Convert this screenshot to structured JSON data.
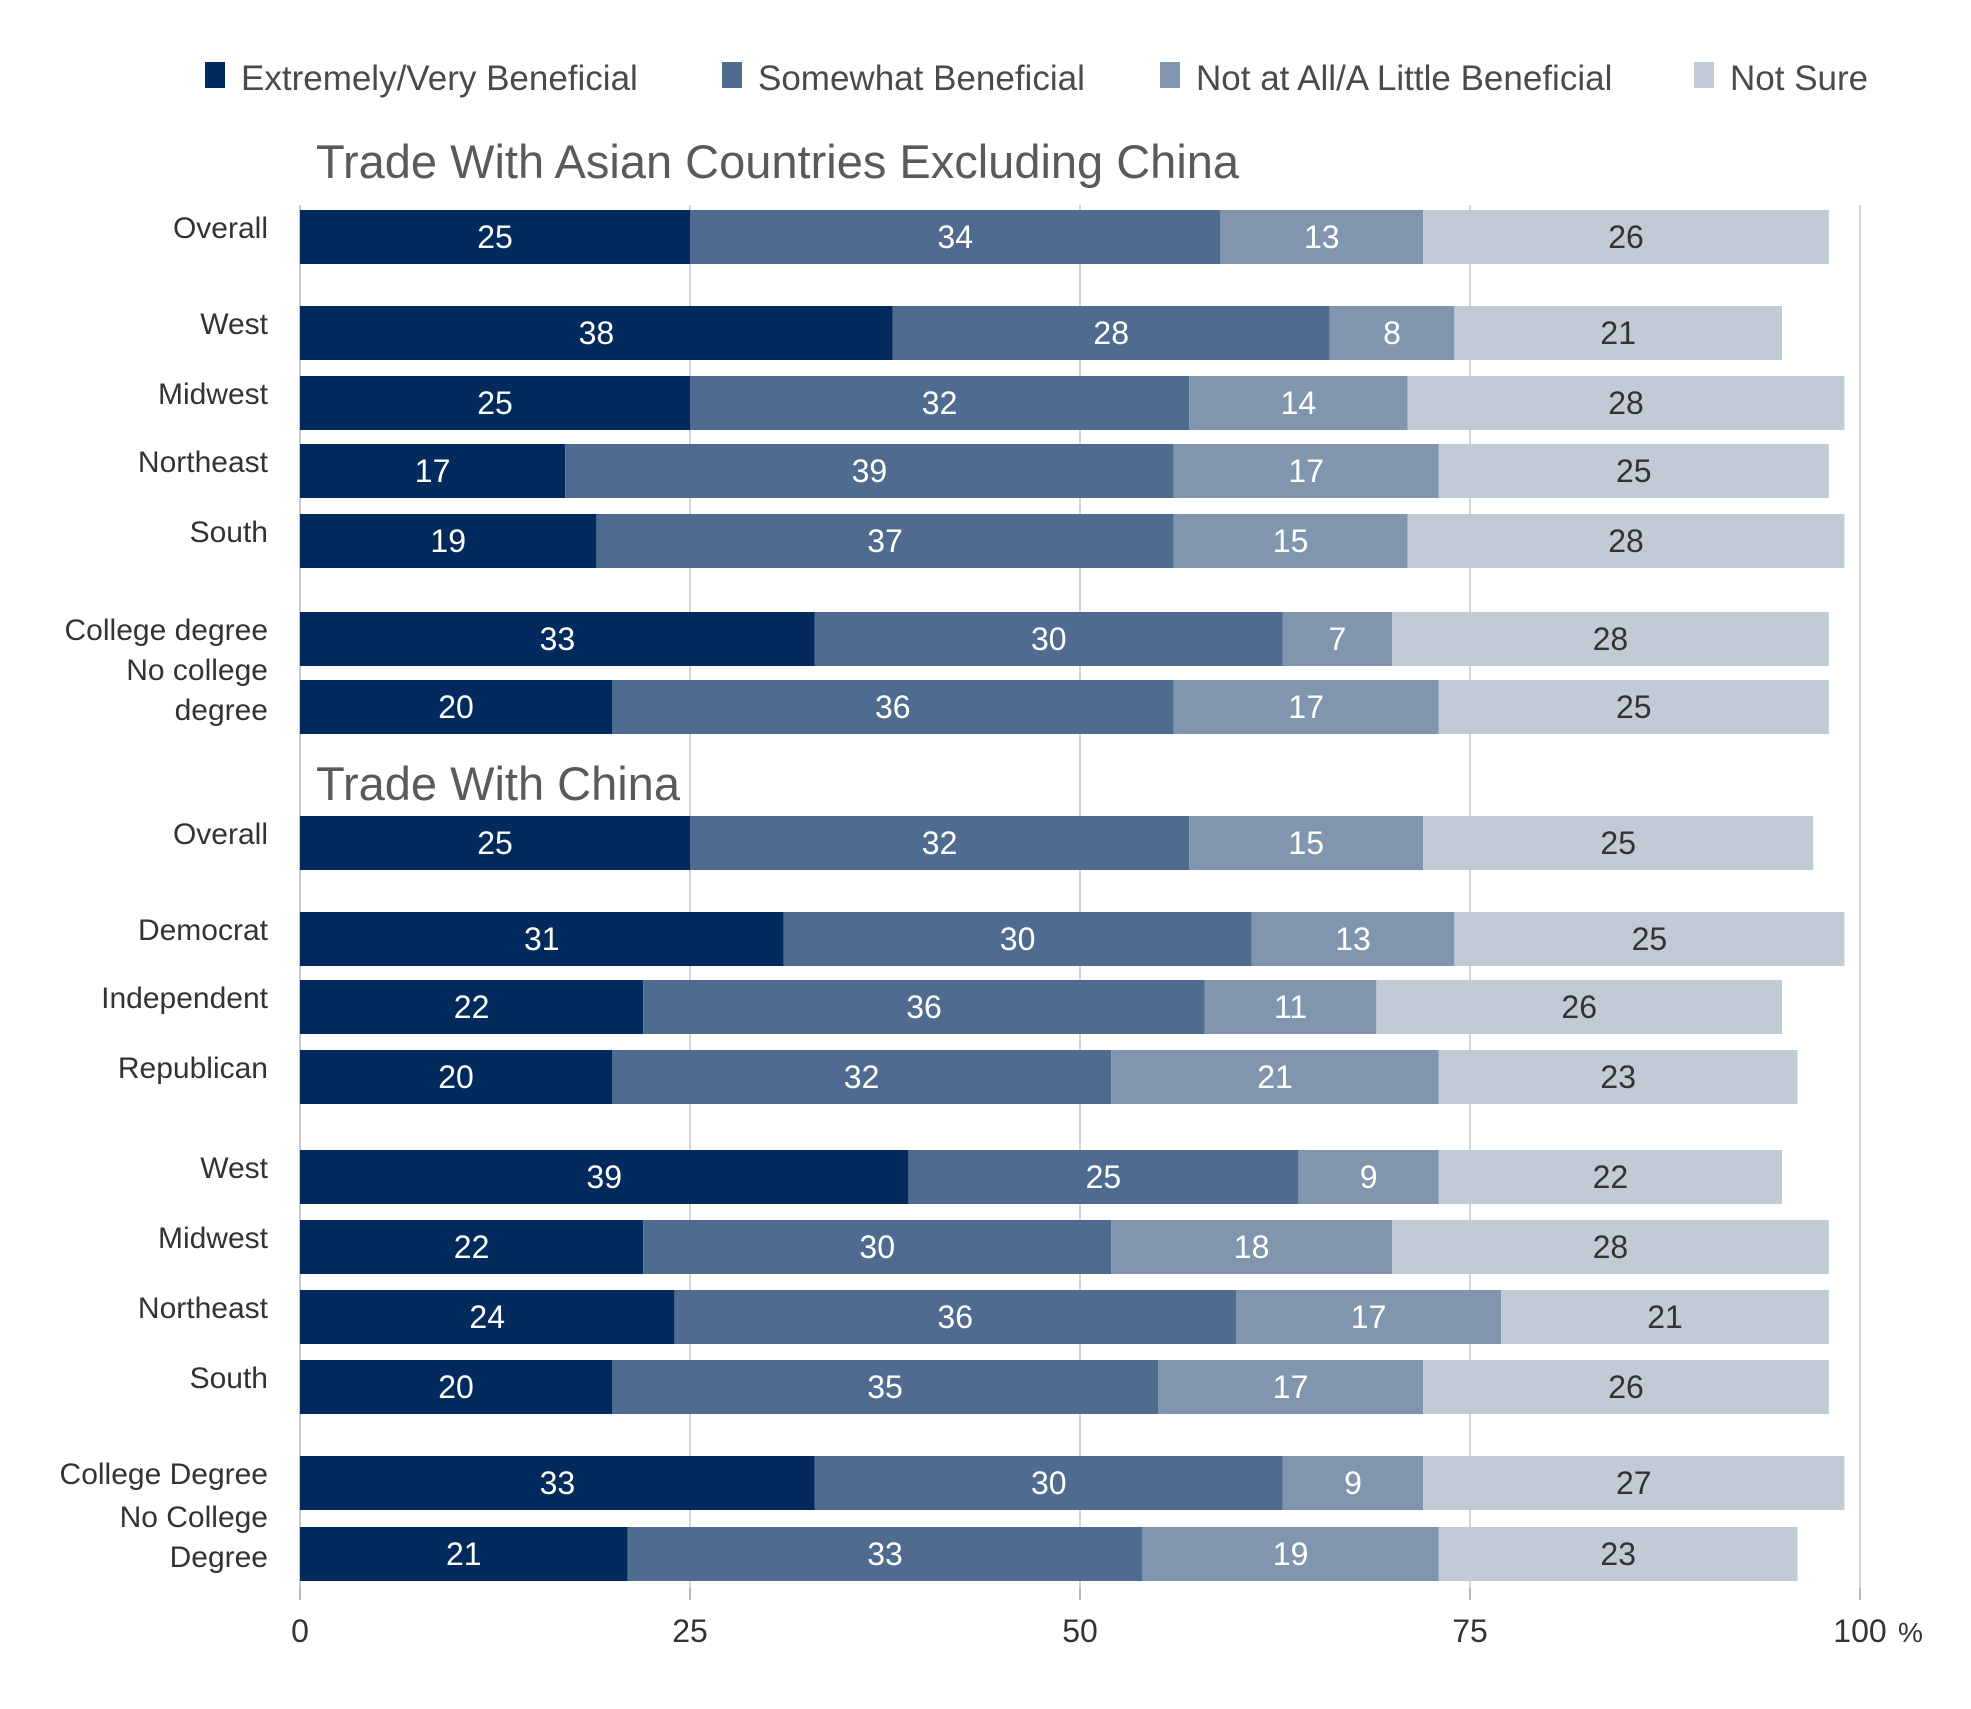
{
  "chart_data": {
    "type": "bar",
    "orientation": "horizontal",
    "stacked": true,
    "legend": {
      "placement": "top",
      "items": [
        {
          "name": "Extremely/Very Beneficial",
          "color": "#022a5c"
        },
        {
          "name": "Somewhat Beneficial",
          "color": "#4f6c90"
        },
        {
          "name": "Not at All/A Little Beneficial",
          "color": "#8196ae"
        },
        {
          "name": "Not Sure",
          "color": "#c2cad6"
        }
      ]
    },
    "xaxis": {
      "ticks": [
        "0",
        "25",
        "50",
        "75",
        "100"
      ],
      "unit": "%",
      "xlim": [
        0,
        100
      ],
      "grid": true
    },
    "panels": [
      {
        "title": "Trade With Asian Countries Excluding China",
        "rows": [
          {
            "label": "Overall",
            "values": [
              25,
              34,
              13,
              26
            ]
          },
          {
            "label": "West",
            "values": [
              38,
              28,
              8,
              21
            ]
          },
          {
            "label": "Midwest",
            "values": [
              25,
              32,
              14,
              28
            ]
          },
          {
            "label": "Northeast",
            "values": [
              17,
              39,
              17,
              25
            ]
          },
          {
            "label": "South",
            "values": [
              19,
              37,
              15,
              28
            ]
          },
          {
            "label": "College degree",
            "values": [
              33,
              30,
              7,
              28
            ]
          },
          {
            "label": "No college degree",
            "label_lines": [
              "No college",
              "degree"
            ],
            "values": [
              20,
              36,
              17,
              25
            ]
          }
        ]
      },
      {
        "title": "Trade With China",
        "rows": [
          {
            "label": "Overall",
            "values": [
              25,
              32,
              15,
              25
            ]
          },
          {
            "label": "Democrat",
            "values": [
              31,
              30,
              13,
              25
            ]
          },
          {
            "label": "Independent",
            "values": [
              22,
              36,
              11,
              26
            ]
          },
          {
            "label": "Republican",
            "values": [
              20,
              32,
              21,
              23
            ]
          },
          {
            "label": "West",
            "values": [
              39,
              25,
              9,
              22
            ]
          },
          {
            "label": "Midwest",
            "values": [
              22,
              30,
              18,
              28
            ]
          },
          {
            "label": "Northeast",
            "values": [
              24,
              36,
              17,
              21
            ]
          },
          {
            "label": "South",
            "values": [
              20,
              35,
              17,
              26
            ]
          },
          {
            "label": "College Degree",
            "values": [
              33,
              30,
              9,
              27
            ]
          },
          {
            "label": "No College Degree",
            "label_lines": [
              "No College",
              "Degree"
            ],
            "values": [
              21,
              33,
              19,
              23
            ]
          }
        ]
      }
    ]
  }
}
